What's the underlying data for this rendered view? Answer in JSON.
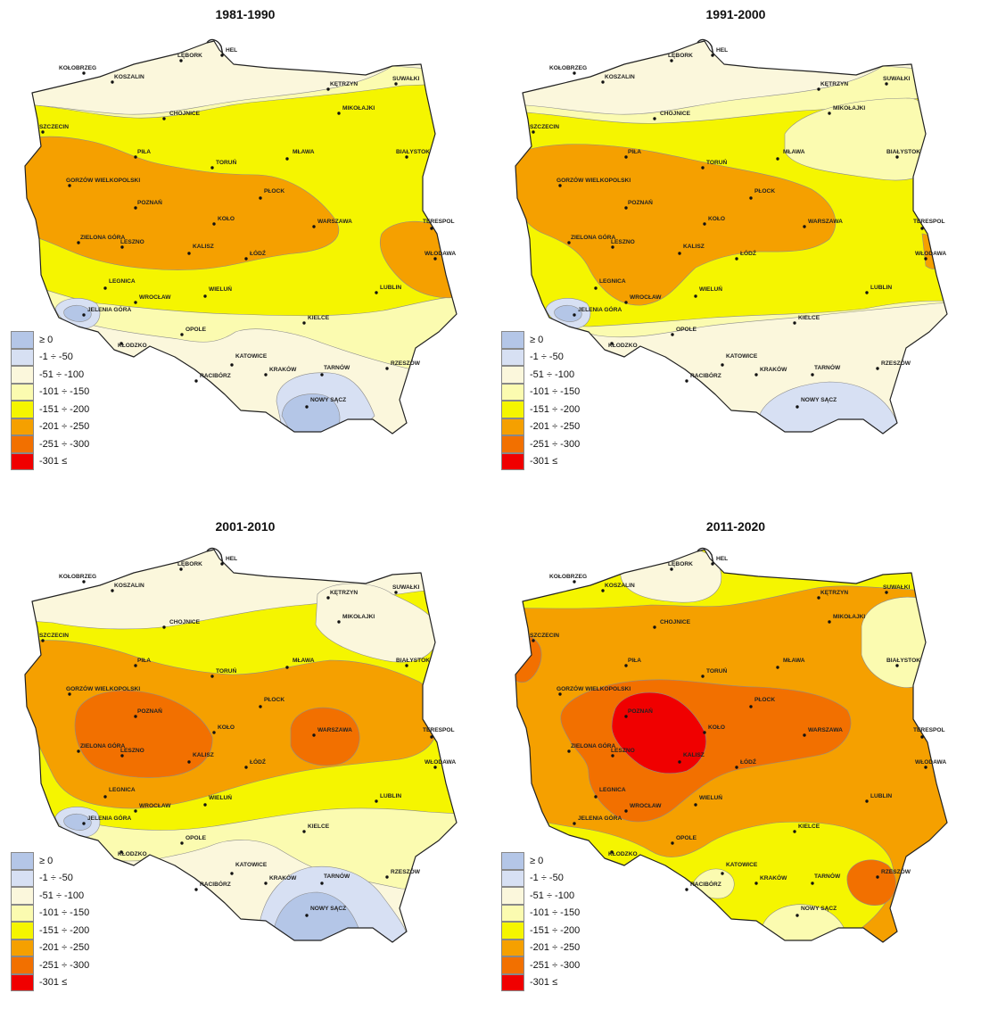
{
  "legend": [
    {
      "label": "≥ 0",
      "color": "#b4c6e7"
    },
    {
      "label": "-1 ÷ -50",
      "color": "#d7e0f3"
    },
    {
      "label": "-51 ÷ -100",
      "color": "#fbf7dc"
    },
    {
      "label": "-101 ÷ -150",
      "color": "#fbfbb0"
    },
    {
      "label": "-151 ÷ -200",
      "color": "#f5f500"
    },
    {
      "label": "-201 ÷ -250",
      "color": "#f5a000"
    },
    {
      "label": "-251 ÷ -300",
      "color": "#f27000"
    },
    {
      "label": "-301 ≤",
      "color": "#f00000"
    }
  ],
  "cities": [
    "HEL",
    "LĘBORK",
    "KOŁOBRZEG",
    "KOSZALIN",
    "KĘTRZYN",
    "SUWAŁKI",
    "MIKOŁAJKI",
    "CHOJNICE",
    "SZCZECIN",
    "BIAŁYSTOK",
    "PIŁA",
    "TORUŃ",
    "MŁAWA",
    "GORZÓW WIELKOPOLSKI",
    "PŁOCK",
    "POZNAŃ",
    "KOŁO",
    "WARSZAWA",
    "TERESPOL",
    "ZIELONA GÓRA",
    "LESZNO",
    "KALISZ",
    "ŁÓDŹ",
    "WŁODAWA",
    "LEGNICA",
    "WROCŁAW",
    "WIELUŃ",
    "LUBLIN",
    "JELENIA GÓRA",
    "KIELCE",
    "OPOLE",
    "KŁODZKO",
    "KATOWICE",
    "RACIBÓRZ",
    "KRAKÓW",
    "TARNÓW",
    "RZESZÓW",
    "NOWY SĄCZ"
  ],
  "panels": [
    {
      "title": "1981-1990",
      "base_class": 3,
      "zones": [
        {
          "class": 2,
          "shape": "north_band"
        },
        {
          "class": 2,
          "shape": "mikolajki_pocket"
        },
        {
          "class": 4,
          "shape": "central_yellow_1981"
        },
        {
          "class": 5,
          "shape": "west_central_orange_1981"
        },
        {
          "class": 5,
          "shape": "east_orange_1981"
        },
        {
          "class": 2,
          "shape": "south_cream_1981"
        },
        {
          "class": 1,
          "shape": "nowy_sacz_light"
        },
        {
          "class": 0,
          "shape": "nowy_sacz_core"
        },
        {
          "class": 1,
          "shape": "jelenia_light"
        },
        {
          "class": 0,
          "shape": "jelenia_core"
        }
      ]
    },
    {
      "title": "1991-2000",
      "base_class": 3,
      "zones": [
        {
          "class": 2,
          "shape": "north_band"
        },
        {
          "class": 4,
          "shape": "central_yellow_1991"
        },
        {
          "class": 3,
          "shape": "northeast_pale_1991"
        },
        {
          "class": 5,
          "shape": "west_central_orange_1991"
        },
        {
          "class": 5,
          "shape": "east_orange_1991"
        },
        {
          "class": 2,
          "shape": "south_cream_1991"
        },
        {
          "class": 1,
          "shape": "nowy_sacz_light_1991"
        },
        {
          "class": 1,
          "shape": "jelenia_light"
        },
        {
          "class": 0,
          "shape": "jelenia_core"
        }
      ]
    },
    {
      "title": "2001-2010",
      "base_class": 4,
      "zones": [
        {
          "class": 2,
          "shape": "north_band_2001"
        },
        {
          "class": 2,
          "shape": "northeast_pale_2001"
        },
        {
          "class": 5,
          "shape": "central_orange_2001"
        },
        {
          "class": 6,
          "shape": "west_dark_2001"
        },
        {
          "class": 6,
          "shape": "warszawa_dark_2001"
        },
        {
          "class": 3,
          "shape": "south_pale_2001"
        },
        {
          "class": 2,
          "shape": "south_cream_2001"
        },
        {
          "class": 1,
          "shape": "nowy_sacz_light_2001"
        },
        {
          "class": 0,
          "shape": "nowy_sacz_core_2001"
        },
        {
          "class": 1,
          "shape": "jelenia_light"
        },
        {
          "class": 0,
          "shape": "jelenia_core"
        }
      ]
    },
    {
      "title": "2011-2020",
      "base_class": 5,
      "zones": [
        {
          "class": 4,
          "shape": "north_yellow_2011"
        },
        {
          "class": 2,
          "shape": "lebork_pale_2011"
        },
        {
          "class": 3,
          "shape": "northeast_pale_2011"
        },
        {
          "class": 6,
          "shape": "szczecin_dark_2011"
        },
        {
          "class": 6,
          "shape": "central_dark_2011"
        },
        {
          "class": 7,
          "shape": "red_core_2011"
        },
        {
          "class": 4,
          "shape": "south_yellow_2011"
        },
        {
          "class": 3,
          "shape": "south_pale_2011"
        },
        {
          "class": 6,
          "shape": "rzeszow_dark_2011"
        }
      ]
    }
  ]
}
